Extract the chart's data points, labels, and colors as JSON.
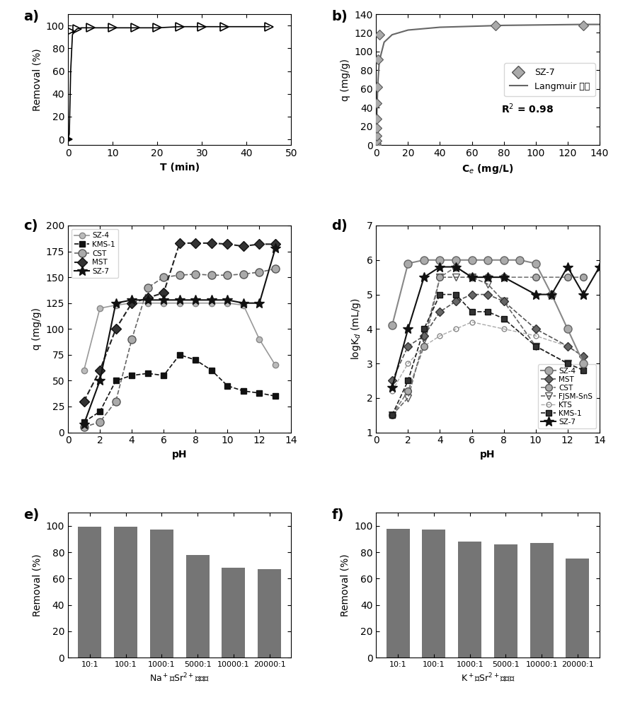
{
  "panel_a": {
    "xlabel": "T (min)",
    "ylabel": "Removal (%)",
    "xlim": [
      0,
      50
    ],
    "ylim": [
      -5,
      110
    ],
    "yticks": [
      0,
      20,
      40,
      60,
      80,
      100
    ],
    "xticks": [
      0,
      10,
      20,
      30,
      40,
      50
    ],
    "line_x": [
      0,
      0.3,
      0.6,
      1.0,
      1.5,
      2,
      3,
      5,
      10,
      15,
      20,
      25,
      30,
      35,
      40,
      45
    ],
    "line_y": [
      0,
      5,
      60,
      92,
      95,
      97,
      98,
      98,
      98,
      98,
      98,
      99,
      99,
      99,
      99,
      99
    ],
    "marker_x": [
      0,
      0.5,
      2,
      5,
      10,
      15,
      20,
      25,
      30,
      35,
      45
    ],
    "marker_y": [
      0,
      95,
      97,
      98,
      98,
      98,
      98,
      99,
      99,
      99,
      99
    ]
  },
  "panel_b": {
    "xlabel": "C$_e$ (mg/L)",
    "ylabel": "q (mg/g)",
    "xlim": [
      0,
      140
    ],
    "ylim": [
      0,
      140
    ],
    "yticks": [
      0,
      20,
      40,
      60,
      80,
      100,
      120,
      140
    ],
    "xticks": [
      0,
      20,
      40,
      60,
      80,
      100,
      120,
      140
    ],
    "scatter_x": [
      0.02,
      0.04,
      0.08,
      0.12,
      0.18,
      0.25,
      0.4,
      0.6,
      1.0,
      2.0,
      75,
      130
    ],
    "scatter_y": [
      0.5,
      2,
      5,
      10,
      18,
      28,
      45,
      62,
      92,
      118,
      128,
      128
    ],
    "langmuir_x": [
      0,
      0.02,
      0.04,
      0.08,
      0.15,
      0.3,
      0.6,
      1.0,
      2.0,
      5,
      10,
      20,
      40,
      80,
      130,
      140
    ],
    "langmuir_y": [
      0,
      0.5,
      2,
      5,
      10,
      22,
      42,
      65,
      90,
      110,
      118,
      123,
      126,
      128,
      129,
      129
    ],
    "legend_label_scatter": "SZ-7",
    "legend_label_line": "Langmuir 模型",
    "r2_text": "R$^2$ = 0.98"
  },
  "panel_c": {
    "xlabel": "pH",
    "ylabel": "q (mg/g)",
    "xlim": [
      0,
      14
    ],
    "ylim": [
      0,
      200
    ],
    "yticks": [
      0,
      25,
      50,
      75,
      100,
      125,
      150,
      175,
      200
    ],
    "xticks": [
      0,
      2,
      4,
      6,
      8,
      10,
      12,
      14
    ],
    "SZ4_x": [
      1,
      2,
      3,
      4,
      5,
      6,
      7,
      8,
      9,
      10,
      11,
      12,
      13
    ],
    "SZ4_y": [
      60,
      120,
      123,
      125,
      125,
      125,
      125,
      125,
      125,
      125,
      123,
      90,
      65
    ],
    "KMS1_x": [
      1,
      2,
      3,
      4,
      5,
      6,
      7,
      8,
      9,
      10,
      11,
      12,
      13
    ],
    "KMS1_y": [
      10,
      20,
      50,
      55,
      57,
      55,
      75,
      70,
      60,
      45,
      40,
      38,
      35
    ],
    "CST_x": [
      1,
      2,
      3,
      4,
      5,
      6,
      7,
      8,
      9,
      10,
      11,
      12,
      13
    ],
    "CST_y": [
      5,
      10,
      30,
      90,
      140,
      150,
      152,
      153,
      152,
      152,
      153,
      155,
      158
    ],
    "MST_x": [
      1,
      2,
      3,
      4,
      5,
      6,
      7,
      8,
      9,
      10,
      11,
      12,
      13
    ],
    "MST_y": [
      30,
      60,
      100,
      125,
      130,
      135,
      183,
      183,
      183,
      182,
      180,
      182,
      182
    ],
    "SZ7_x": [
      1,
      2,
      3,
      4,
      5,
      6,
      7,
      8,
      9,
      10,
      11,
      12,
      13
    ],
    "SZ7_y": [
      8,
      50,
      125,
      128,
      128,
      128,
      128,
      128,
      128,
      128,
      125,
      125,
      178
    ]
  },
  "panel_d": {
    "xlabel": "pH",
    "ylabel": "logK$_d$ (mL/g)",
    "xlim": [
      0,
      14
    ],
    "ylim": [
      1,
      7
    ],
    "yticks": [
      1,
      2,
      3,
      4,
      5,
      6,
      7
    ],
    "xticks": [
      0,
      2,
      4,
      6,
      8,
      10,
      12,
      14
    ],
    "SZ4_x": [
      1,
      2,
      3,
      4,
      5,
      6,
      7,
      8,
      9,
      10,
      11,
      12,
      13
    ],
    "SZ4_y": [
      4.1,
      5.9,
      6.0,
      6.0,
      6.0,
      6.0,
      6.0,
      6.0,
      6.0,
      5.9,
      5.0,
      4.0,
      3.0
    ],
    "MST_x": [
      1,
      2,
      3,
      4,
      5,
      6,
      7,
      8,
      10,
      12,
      13
    ],
    "MST_y": [
      2.5,
      3.5,
      3.8,
      4.5,
      4.8,
      5.0,
      5.0,
      4.8,
      4.0,
      3.5,
      3.2
    ],
    "CST_x": [
      1,
      2,
      3,
      4,
      5,
      6,
      7,
      8,
      10,
      12,
      13
    ],
    "CST_y": [
      1.5,
      2.2,
      3.5,
      5.5,
      5.8,
      5.5,
      5.5,
      5.5,
      5.5,
      5.5,
      5.5
    ],
    "FJSM_x": [
      1,
      2,
      3,
      4,
      5,
      6,
      7,
      8,
      10,
      12,
      13
    ],
    "FJSM_y": [
      1.5,
      2.0,
      3.7,
      5.5,
      5.5,
      5.5,
      5.3,
      4.8,
      3.5,
      3.0,
      2.8
    ],
    "KTS_x": [
      1,
      2,
      3,
      4,
      5,
      6,
      8,
      10,
      12,
      13
    ],
    "KTS_y": [
      2.2,
      3.0,
      3.5,
      3.8,
      4.0,
      4.2,
      4.0,
      3.8,
      3.5,
      3.2
    ],
    "KMS1_x": [
      1,
      2,
      3,
      4,
      5,
      6,
      7,
      8,
      10,
      12,
      13
    ],
    "KMS1_y": [
      1.5,
      2.5,
      4.0,
      5.0,
      5.0,
      4.5,
      4.5,
      4.3,
      3.5,
      3.0,
      2.8
    ],
    "SZ7_x": [
      1,
      2,
      3,
      4,
      5,
      6,
      7,
      8,
      10,
      11,
      12,
      13,
      14
    ],
    "SZ7_y": [
      2.3,
      4.0,
      5.5,
      5.8,
      5.8,
      5.5,
      5.5,
      5.5,
      5.0,
      5.0,
      5.8,
      5.0,
      5.8
    ]
  },
  "panel_e": {
    "ylabel": "Removal (%)",
    "categories": [
      "10:1",
      "100:1",
      "1000:1",
      "5000:1",
      "10000:1",
      "20000:1"
    ],
    "values": [
      99.5,
      99.4,
      97.5,
      78,
      68,
      67
    ],
    "bar_color": "#757575",
    "ylim": [
      0,
      110
    ],
    "yticks": [
      0,
      20,
      40,
      60,
      80,
      100
    ]
  },
  "panel_f": {
    "ylabel": "Removal (%)",
    "categories": [
      "10:1",
      "100:1",
      "1000:1",
      "5000:1",
      "10000:1",
      "20000:1"
    ],
    "values": [
      98,
      97,
      88,
      86,
      87,
      75
    ],
    "bar_color": "#757575",
    "ylim": [
      0,
      110
    ],
    "yticks": [
      0,
      20,
      40,
      60,
      80,
      100
    ]
  }
}
